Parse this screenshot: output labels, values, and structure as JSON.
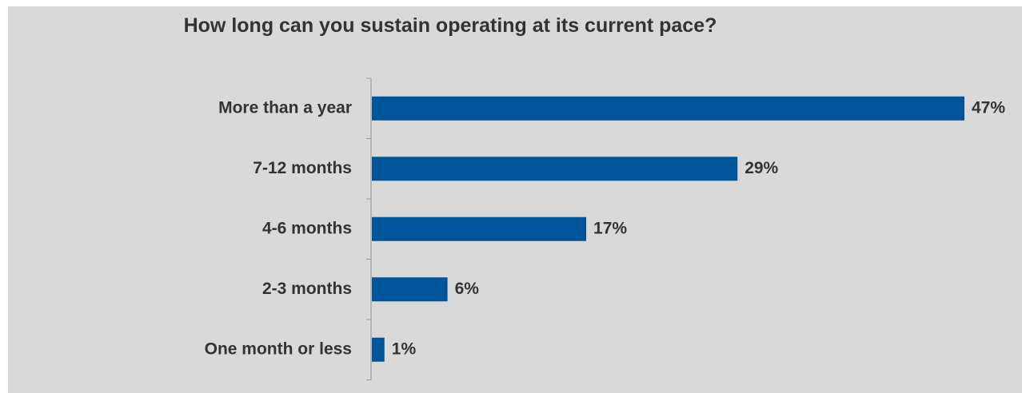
{
  "chart_data": {
    "type": "bar",
    "orientation": "horizontal",
    "title": "How long can you sustain operating at its current pace?",
    "categories": [
      "More than a year",
      "7-12 months",
      "4-6 months",
      "2-3 months",
      "One month or less"
    ],
    "values": [
      47,
      29,
      17,
      6,
      1
    ],
    "value_labels": [
      "47%",
      "29%",
      "17%",
      "6%",
      "1%"
    ],
    "xlim": [
      0,
      47
    ],
    "grid": false,
    "legend": "none",
    "bar_color": "#00549a",
    "background_color": "#d9d9d9"
  }
}
